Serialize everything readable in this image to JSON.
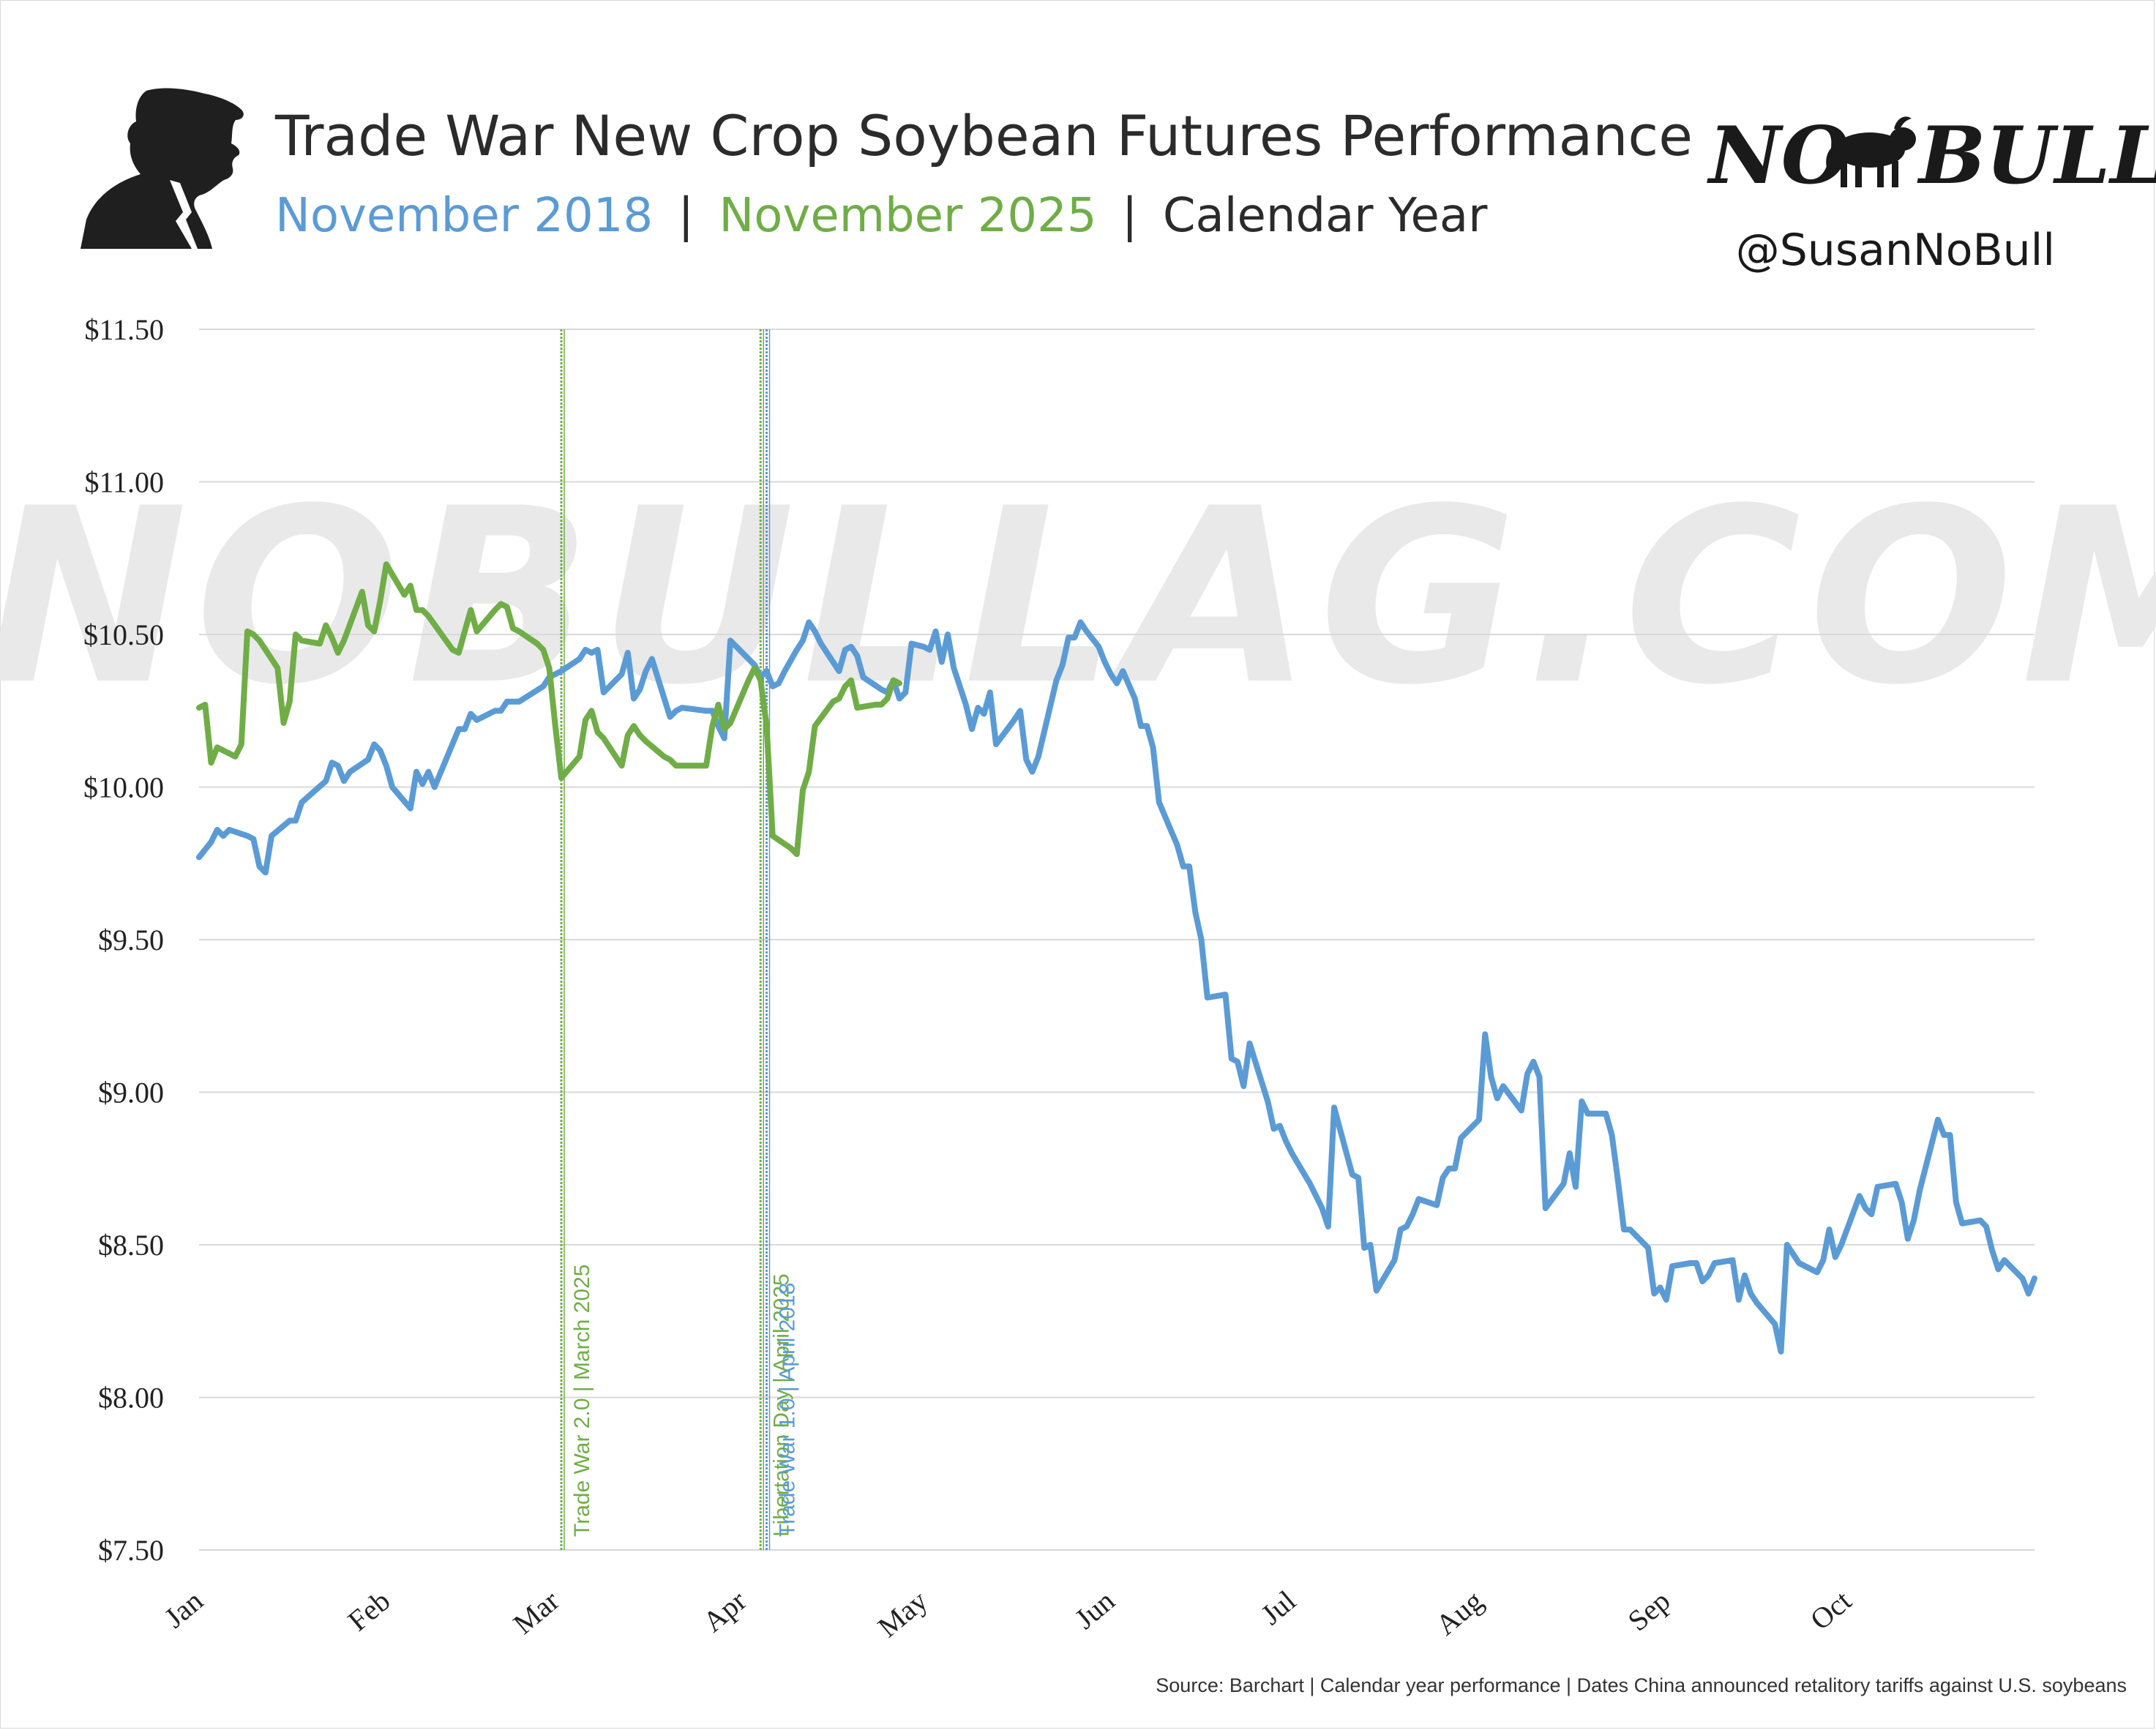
{
  "header": {
    "title": "Trade War New Crop Soybean Futures Performance",
    "subtitle_2018": "November 2018",
    "subtitle_sep": "|",
    "subtitle_2025": "November 2025",
    "subtitle_rest": "Calendar Year",
    "logo_no": "NO",
    "logo_bull": "BULL",
    "handle": "@SusanNoBull",
    "watermark": "NOBULLAG.COM"
  },
  "footer": {
    "source": "Source: Barchart | Calendar year performance | Dates China announced retalitory tariffs against U.S. soybeans"
  },
  "colors": {
    "blue": "#5b9bd5",
    "green": "#70ad47",
    "grid": "#d9d9d9",
    "text": "#2b2b2b"
  },
  "chart_data": {
    "type": "line",
    "x_unit": "day of calendar year",
    "month_labels": [
      "Jan",
      "Feb",
      "Mar",
      "Apr",
      "May",
      "Jun",
      "Jul",
      "Aug",
      "Sep",
      "Oct"
    ],
    "month_starts": [
      1,
      32,
      60,
      91,
      121,
      152,
      182,
      213,
      244,
      274
    ],
    "xlim": [
      1,
      305
    ],
    "ylim": [
      7.5,
      11.5
    ],
    "y_ticks": [
      "$7.50",
      "$8.00",
      "$8.50",
      "$9.00",
      "$9.50",
      "$10.00",
      "$10.50",
      "$11.00",
      "$11.50"
    ],
    "y_tick_values": [
      7.5,
      8.0,
      8.5,
      9.0,
      9.5,
      10.0,
      10.5,
      11.0,
      11.5
    ],
    "grid": "horizontal",
    "annotations": [
      {
        "label": "Trade War 2.0 | March 2025",
        "day": 61,
        "color": "#70ad47"
      },
      {
        "label": "Libertation Day | April 2025",
        "day": 94,
        "color": "#70ad47"
      },
      {
        "label": "Trade War 1.0 | April 2018",
        "day": 95,
        "color": "#5b9bd5"
      }
    ],
    "series": [
      {
        "name": "November 2018",
        "color": "#5b9bd5",
        "points": [
          [
            1,
            9.77
          ],
          [
            3,
            9.82
          ],
          [
            4,
            9.86
          ],
          [
            5,
            9.84
          ],
          [
            6,
            9.86
          ],
          [
            9,
            9.84
          ],
          [
            10,
            9.83
          ],
          [
            11,
            9.74
          ],
          [
            12,
            9.72
          ],
          [
            13,
            9.84
          ],
          [
            16,
            9.89
          ],
          [
            17,
            9.89
          ],
          [
            18,
            9.95
          ],
          [
            22,
            10.02
          ],
          [
            23,
            10.08
          ],
          [
            24,
            10.07
          ],
          [
            25,
            10.02
          ],
          [
            26,
            10.05
          ],
          [
            29,
            10.09
          ],
          [
            30,
            10.14
          ],
          [
            31,
            10.12
          ],
          [
            32,
            10.07
          ],
          [
            33,
            10.0
          ],
          [
            36,
            9.93
          ],
          [
            37,
            10.05
          ],
          [
            38,
            10.01
          ],
          [
            39,
            10.05
          ],
          [
            40,
            10.0
          ],
          [
            44,
            10.19
          ],
          [
            45,
            10.19
          ],
          [
            46,
            10.24
          ],
          [
            47,
            10.22
          ],
          [
            50,
            10.25
          ],
          [
            51,
            10.25
          ],
          [
            52,
            10.28
          ],
          [
            53,
            10.28
          ],
          [
            54,
            10.28
          ],
          [
            58,
            10.33
          ],
          [
            59,
            10.36
          ],
          [
            60,
            10.37
          ],
          [
            61,
            10.38
          ],
          [
            64,
            10.42
          ],
          [
            65,
            10.45
          ],
          [
            66,
            10.44
          ],
          [
            67,
            10.45
          ],
          [
            68,
            10.31
          ],
          [
            71,
            10.37
          ],
          [
            72,
            10.44
          ],
          [
            73,
            10.29
          ],
          [
            74,
            10.32
          ],
          [
            75,
            10.38
          ],
          [
            76,
            10.42
          ],
          [
            79,
            10.23
          ],
          [
            80,
            10.25
          ],
          [
            81,
            10.26
          ],
          [
            85,
            10.25
          ],
          [
            86,
            10.25
          ],
          [
            87,
            10.2
          ],
          [
            88,
            10.16
          ],
          [
            89,
            10.48
          ],
          [
            90,
            10.46
          ],
          [
            93,
            10.4
          ],
          [
            94,
            10.36
          ],
          [
            95,
            10.38
          ],
          [
            96,
            10.33
          ],
          [
            97,
            10.34
          ],
          [
            98,
            10.38
          ],
          [
            100,
            10.45
          ],
          [
            101,
            10.48
          ],
          [
            102,
            10.54
          ],
          [
            103,
            10.51
          ],
          [
            104,
            10.47
          ],
          [
            105,
            10.44
          ],
          [
            107,
            10.38
          ],
          [
            108,
            10.45
          ],
          [
            109,
            10.46
          ],
          [
            110,
            10.43
          ],
          [
            111,
            10.36
          ],
          [
            114,
            10.32
          ],
          [
            115,
            10.31
          ],
          [
            116,
            10.35
          ],
          [
            117,
            10.29
          ],
          [
            118,
            10.31
          ],
          [
            119,
            10.47
          ],
          [
            121,
            10.46
          ],
          [
            122,
            10.45
          ],
          [
            123,
            10.51
          ],
          [
            124,
            10.41
          ],
          [
            125,
            10.5
          ],
          [
            126,
            10.39
          ],
          [
            128,
            10.27
          ],
          [
            129,
            10.19
          ],
          [
            130,
            10.26
          ],
          [
            131,
            10.24
          ],
          [
            132,
            10.31
          ],
          [
            133,
            10.14
          ],
          [
            136,
            10.22
          ],
          [
            137,
            10.25
          ],
          [
            138,
            10.09
          ],
          [
            139,
            10.05
          ],
          [
            140,
            10.1
          ],
          [
            143,
            10.35
          ],
          [
            144,
            10.4
          ],
          [
            145,
            10.49
          ],
          [
            146,
            10.49
          ],
          [
            147,
            10.54
          ],
          [
            148,
            10.51
          ],
          [
            150,
            10.46
          ],
          [
            151,
            10.41
          ],
          [
            152,
            10.37
          ],
          [
            153,
            10.34
          ],
          [
            154,
            10.38
          ],
          [
            156,
            10.29
          ],
          [
            157,
            10.2
          ],
          [
            158,
            10.2
          ],
          [
            159,
            10.13
          ],
          [
            160,
            9.95
          ],
          [
            163,
            9.81
          ],
          [
            164,
            9.74
          ],
          [
            165,
            9.74
          ],
          [
            166,
            9.59
          ],
          [
            167,
            9.5
          ],
          [
            168,
            9.31
          ],
          [
            171,
            9.32
          ],
          [
            172,
            9.11
          ],
          [
            173,
            9.1
          ],
          [
            174,
            9.02
          ],
          [
            175,
            9.16
          ],
          [
            178,
            8.97
          ],
          [
            179,
            8.88
          ],
          [
            180,
            8.89
          ],
          [
            181,
            8.84
          ],
          [
            182,
            8.8
          ],
          [
            185,
            8.7
          ],
          [
            186,
            8.66
          ],
          [
            187,
            8.62
          ],
          [
            188,
            8.56
          ],
          [
            189,
            8.95
          ],
          [
            192,
            8.73
          ],
          [
            193,
            8.72
          ],
          [
            194,
            8.49
          ],
          [
            195,
            8.5
          ],
          [
            196,
            8.35
          ],
          [
            199,
            8.45
          ],
          [
            200,
            8.55
          ],
          [
            201,
            8.56
          ],
          [
            202,
            8.6
          ],
          [
            203,
            8.65
          ],
          [
            206,
            8.63
          ],
          [
            207,
            8.72
          ],
          [
            208,
            8.75
          ],
          [
            209,
            8.75
          ],
          [
            210,
            8.85
          ],
          [
            213,
            8.91
          ],
          [
            214,
            9.19
          ],
          [
            215,
            9.05
          ],
          [
            216,
            8.98
          ],
          [
            217,
            9.02
          ],
          [
            220,
            8.94
          ],
          [
            221,
            9.06
          ],
          [
            222,
            9.1
          ],
          [
            223,
            9.05
          ],
          [
            224,
            8.62
          ],
          [
            227,
            8.7
          ],
          [
            228,
            8.8
          ],
          [
            229,
            8.69
          ],
          [
            230,
            8.97
          ],
          [
            231,
            8.93
          ],
          [
            234,
            8.93
          ],
          [
            235,
            8.86
          ],
          [
            236,
            8.71
          ],
          [
            237,
            8.55
          ],
          [
            238,
            8.55
          ],
          [
            241,
            8.49
          ],
          [
            242,
            8.34
          ],
          [
            243,
            8.36
          ],
          [
            244,
            8.32
          ],
          [
            245,
            8.43
          ],
          [
            248,
            8.44
          ],
          [
            249,
            8.44
          ],
          [
            250,
            8.38
          ],
          [
            251,
            8.4
          ],
          [
            252,
            8.44
          ],
          [
            255,
            8.45
          ],
          [
            256,
            8.32
          ],
          [
            257,
            8.4
          ],
          [
            258,
            8.34
          ],
          [
            259,
            8.31
          ],
          [
            262,
            8.24
          ],
          [
            263,
            8.15
          ],
          [
            264,
            8.5
          ],
          [
            265,
            8.47
          ],
          [
            266,
            8.44
          ],
          [
            269,
            8.41
          ],
          [
            270,
            8.45
          ],
          [
            271,
            8.55
          ],
          [
            272,
            8.46
          ],
          [
            273,
            8.5
          ],
          [
            276,
            8.66
          ],
          [
            277,
            8.62
          ],
          [
            278,
            8.6
          ],
          [
            279,
            8.69
          ],
          [
            282,
            8.7
          ],
          [
            283,
            8.64
          ],
          [
            284,
            8.52
          ],
          [
            285,
            8.58
          ],
          [
            286,
            8.68
          ],
          [
            289,
            8.91
          ],
          [
            290,
            8.86
          ],
          [
            291,
            8.86
          ],
          [
            292,
            8.64
          ],
          [
            293,
            8.57
          ],
          [
            296,
            8.58
          ],
          [
            297,
            8.56
          ],
          [
            298,
            8.48
          ],
          [
            299,
            8.42
          ],
          [
            300,
            8.45
          ],
          [
            303,
            8.39
          ],
          [
            304,
            8.34
          ],
          [
            305,
            8.39
          ]
        ]
      },
      {
        "name": "November 2025",
        "color": "#70ad47",
        "points": [
          [
            1,
            10.26
          ],
          [
            2,
            10.27
          ],
          [
            3,
            10.08
          ],
          [
            4,
            10.13
          ],
          [
            7,
            10.1
          ],
          [
            8,
            10.14
          ],
          [
            9,
            10.51
          ],
          [
            10,
            10.5
          ],
          [
            11,
            10.48
          ],
          [
            14,
            10.39
          ],
          [
            15,
            10.21
          ],
          [
            16,
            10.28
          ],
          [
            17,
            10.5
          ],
          [
            18,
            10.48
          ],
          [
            21,
            10.47
          ],
          [
            22,
            10.53
          ],
          [
            23,
            10.49
          ],
          [
            24,
            10.44
          ],
          [
            25,
            10.48
          ],
          [
            28,
            10.64
          ],
          [
            29,
            10.53
          ],
          [
            30,
            10.51
          ],
          [
            31,
            10.61
          ],
          [
            32,
            10.73
          ],
          [
            35,
            10.63
          ],
          [
            36,
            10.66
          ],
          [
            37,
            10.58
          ],
          [
            38,
            10.58
          ],
          [
            39,
            10.56
          ],
          [
            43,
            10.45
          ],
          [
            44,
            10.44
          ],
          [
            45,
            10.51
          ],
          [
            46,
            10.58
          ],
          [
            47,
            10.51
          ],
          [
            50,
            10.58
          ],
          [
            51,
            10.6
          ],
          [
            52,
            10.59
          ],
          [
            53,
            10.52
          ],
          [
            54,
            10.51
          ],
          [
            57,
            10.47
          ],
          [
            58,
            10.45
          ],
          [
            59,
            10.39
          ],
          [
            60,
            10.2
          ],
          [
            61,
            10.03
          ],
          [
            64,
            10.1
          ],
          [
            65,
            10.22
          ],
          [
            66,
            10.25
          ],
          [
            67,
            10.18
          ],
          [
            68,
            10.16
          ],
          [
            71,
            10.07
          ],
          [
            72,
            10.17
          ],
          [
            73,
            10.2
          ],
          [
            74,
            10.17
          ],
          [
            75,
            10.15
          ],
          [
            78,
            10.1
          ],
          [
            79,
            10.09
          ],
          [
            80,
            10.07
          ],
          [
            85,
            10.07
          ],
          [
            86,
            10.2
          ],
          [
            87,
            10.27
          ],
          [
            88,
            10.19
          ],
          [
            89,
            10.21
          ],
          [
            92,
            10.35
          ],
          [
            93,
            10.39
          ],
          [
            94,
            10.35
          ],
          [
            95,
            10.2
          ],
          [
            96,
            9.84
          ],
          [
            99,
            9.8
          ],
          [
            100,
            9.78
          ],
          [
            101,
            9.99
          ],
          [
            102,
            10.05
          ],
          [
            103,
            10.2
          ],
          [
            106,
            10.28
          ],
          [
            107,
            10.29
          ],
          [
            108,
            10.33
          ],
          [
            109,
            10.35
          ],
          [
            110,
            10.26
          ],
          [
            113,
            10.27
          ],
          [
            114,
            10.27
          ],
          [
            115,
            10.29
          ],
          [
            116,
            10.35
          ],
          [
            117,
            10.34
          ]
        ]
      }
    ]
  }
}
